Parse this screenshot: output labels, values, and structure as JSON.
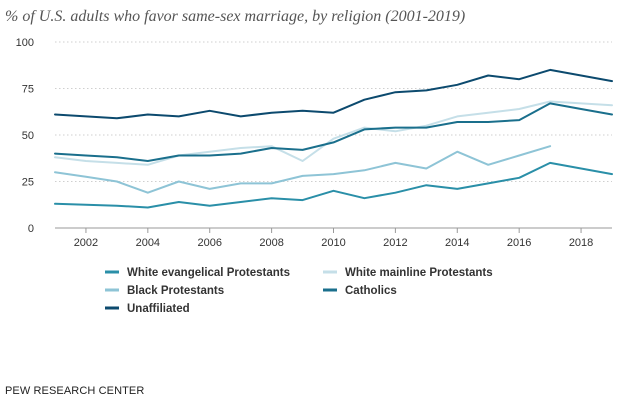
{
  "title": "% of U.S. adults who favor same-sex marriage, by religion (2001-2019)",
  "source": "PEW RESEARCH CENTER",
  "chart_data": {
    "type": "line",
    "title": "% of U.S. adults who favor same-sex marriage, by religion (2001-2019)",
    "xlabel": "",
    "ylabel": "",
    "xlim": [
      2001,
      2019
    ],
    "ylim": [
      0,
      100
    ],
    "y_ticks": [
      0,
      25,
      50,
      75,
      100
    ],
    "x_ticks": [
      2002,
      2004,
      2006,
      2008,
      2010,
      2012,
      2014,
      2016,
      2018
    ],
    "grid": "horizontal dotted",
    "legend_position": "bottom",
    "x": [
      2001,
      2002,
      2003,
      2004,
      2005,
      2006,
      2007,
      2008,
      2009,
      2010,
      2011,
      2012,
      2013,
      2014,
      2015,
      2016,
      2017,
      2018,
      2019
    ],
    "series": [
      {
        "name": "White evangelical Protestants",
        "color": "#2a8fa8",
        "values": [
          13,
          12.5,
          12,
          11,
          14,
          12,
          14,
          16,
          15,
          20,
          16,
          19,
          23,
          21,
          24,
          27,
          35,
          32,
          29
        ]
      },
      {
        "name": "White mainline Protestants",
        "color": "#c5dfe8",
        "values": [
          38,
          36,
          35,
          34,
          39,
          41,
          43,
          44,
          36,
          48,
          54,
          52,
          55,
          60,
          62,
          64,
          68,
          67,
          66
        ]
      },
      {
        "name": "Black Protestants",
        "color": "#8ec4d6",
        "values": [
          30,
          27.5,
          25,
          19,
          25,
          21,
          24,
          24,
          28,
          29,
          31,
          35,
          32,
          41,
          34,
          39,
          44,
          null,
          null
        ]
      },
      {
        "name": "Catholics",
        "color": "#1a6f8c",
        "values": [
          40,
          39,
          38,
          36,
          39,
          39,
          40,
          43,
          42,
          46,
          53,
          54,
          54,
          57,
          57,
          58,
          67,
          64,
          61
        ]
      },
      {
        "name": "Unaffiliated",
        "color": "#0c4a6e",
        "values": [
          61,
          60,
          59,
          61,
          60,
          63,
          60,
          62,
          63,
          62,
          69,
          73,
          74,
          77,
          82,
          80,
          85,
          82,
          79
        ]
      }
    ]
  }
}
